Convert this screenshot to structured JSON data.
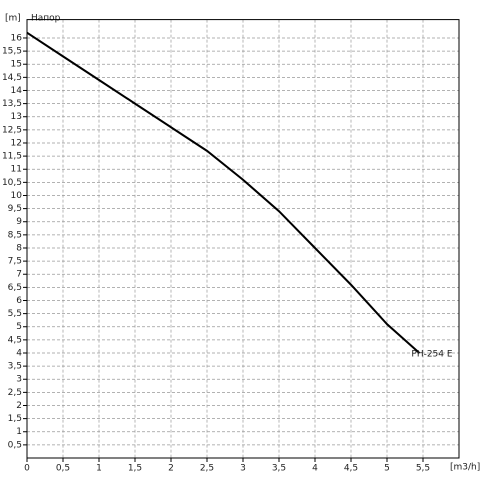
{
  "chart_data": {
    "type": "line",
    "title": "Напор",
    "y_label": "[m]",
    "x_label": "[m3/h]",
    "xlim": [
      0,
      6
    ],
    "ylim": [
      0,
      16.7
    ],
    "grid": true,
    "xticks": [
      0,
      {
        "value": 0.5,
        "label": "0,5"
      },
      1,
      {
        "value": 1.5,
        "label": "1,5"
      },
      2,
      {
        "value": 2.5,
        "label": "2,5"
      },
      3,
      {
        "value": 3.5,
        "label": "3,5"
      },
      4,
      {
        "value": 4.5,
        "label": "4,5"
      },
      5,
      {
        "value": 5.5,
        "label": "5,5"
      }
    ],
    "yticks": [
      {
        "value": 0.5,
        "label": "0,5"
      },
      1,
      {
        "value": 1.5,
        "label": "1,5"
      },
      2,
      {
        "value": 2.5,
        "label": "2,5"
      },
      3,
      {
        "value": 3.5,
        "label": "3,5"
      },
      4,
      {
        "value": 4.5,
        "label": "4,5"
      },
      5,
      {
        "value": 5.5,
        "label": "5,5"
      },
      6,
      {
        "value": 6.5,
        "label": "6,5"
      },
      7,
      {
        "value": 7.5,
        "label": "7,5"
      },
      8,
      {
        "value": 8.5,
        "label": "8,5"
      },
      9,
      {
        "value": 9.5,
        "label": "9,5"
      },
      10,
      {
        "value": 10.5,
        "label": "10,5"
      },
      11,
      {
        "value": 11.5,
        "label": "11,5"
      },
      12,
      {
        "value": 12.5,
        "label": "12,5"
      },
      13,
      {
        "value": 13.5,
        "label": "13,5"
      },
      14,
      {
        "value": 14.5,
        "label": "14,5"
      },
      15,
      {
        "value": 15.5,
        "label": "15,5"
      },
      16
    ],
    "x": [
      0,
      0.5,
      1,
      1.5,
      2,
      2.5,
      3,
      3.5,
      4,
      4.5,
      5,
      5.45
    ],
    "series": [
      {
        "name": "PH-254 E",
        "color": "#000000",
        "values": [
          16.2,
          15.3,
          14.4,
          13.5,
          12.6,
          11.7,
          10.6,
          9.4,
          8.0,
          6.6,
          5.1,
          4.0
        ]
      }
    ]
  }
}
